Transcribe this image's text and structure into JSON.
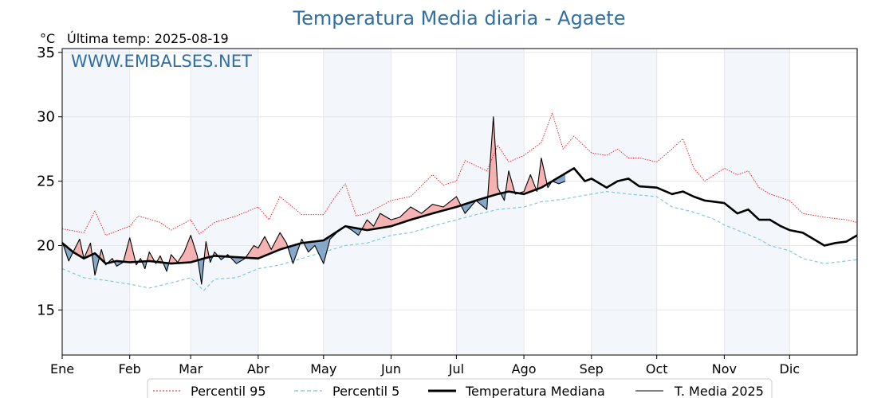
{
  "chart_data": {
    "type": "line",
    "title": "Temperatura Media diaria - Agaete",
    "unit": "°C",
    "subtitle": "Última temp: 2025-08-19",
    "watermark": "WWW.EMBALSES.NET",
    "xlabel": "",
    "ylabel": "",
    "ylim": [
      11.5,
      35.3
    ],
    "yticks": [
      15,
      20,
      25,
      30,
      35
    ],
    "xlim": [
      0,
      365
    ],
    "months": [
      "Ene",
      "Feb",
      "Mar",
      "Abr",
      "May",
      "Jun",
      "Jul",
      "Ago",
      "Sep",
      "Oct",
      "Nov",
      "Dic"
    ],
    "month_start_days": [
      0,
      31,
      59,
      90,
      120,
      151,
      181,
      212,
      243,
      273,
      304,
      334
    ],
    "grid": true,
    "legend_position": "bottom",
    "series": [
      {
        "name": "Percentil 95",
        "color": "#e8141b",
        "style": "dotted",
        "x": [
          0,
          10,
          15,
          20,
          31,
          35,
          45,
          50,
          59,
          63,
          70,
          80,
          90,
          95,
          100,
          110,
          120,
          125,
          130,
          135,
          140,
          151,
          160,
          170,
          175,
          181,
          185,
          195,
          200,
          205,
          212,
          220,
          225,
          230,
          235,
          243,
          250,
          255,
          260,
          265,
          273,
          280,
          285,
          290,
          295,
          304,
          310,
          315,
          320,
          325,
          334,
          340,
          350,
          360,
          365
        ],
        "values": [
          21.3,
          21.0,
          22.7,
          20.8,
          21.5,
          22.3,
          21.8,
          21.2,
          22.0,
          20.9,
          21.8,
          22.3,
          23.0,
          22.0,
          23.8,
          22.4,
          22.4,
          23.7,
          24.8,
          22.3,
          22.5,
          23.5,
          23.8,
          25.5,
          24.7,
          25.0,
          26.6,
          25.8,
          27.8,
          26.5,
          27.0,
          28.0,
          30.3,
          27.5,
          28.5,
          27.2,
          27.0,
          27.5,
          26.8,
          26.8,
          26.5,
          27.5,
          28.3,
          26.0,
          25.0,
          26.0,
          25.5,
          25.8,
          24.5,
          24.0,
          23.5,
          22.5,
          22.2,
          22.0,
          21.8
        ]
      },
      {
        "name": "Percentil 5",
        "color": "#7ec8e3",
        "style": "dashed",
        "x": [
          0,
          10,
          20,
          31,
          40,
          50,
          59,
          65,
          70,
          80,
          90,
          100,
          110,
          120,
          130,
          140,
          151,
          160,
          170,
          181,
          190,
          200,
          212,
          220,
          230,
          243,
          250,
          260,
          273,
          280,
          290,
          300,
          304,
          310,
          320,
          325,
          334,
          340,
          350,
          360,
          365
        ],
        "values": [
          18.2,
          17.5,
          17.3,
          17.0,
          16.7,
          17.1,
          17.5,
          16.5,
          17.4,
          17.5,
          18.2,
          18.5,
          19.0,
          19.5,
          20.0,
          20.2,
          20.8,
          21.0,
          21.5,
          22.0,
          22.4,
          22.8,
          23.0,
          23.4,
          23.6,
          24.0,
          24.2,
          24.0,
          23.8,
          23.0,
          22.6,
          22.0,
          21.6,
          21.2,
          20.5,
          20.0,
          19.6,
          19.0,
          18.6,
          18.8,
          18.9
        ]
      },
      {
        "name": "Temperatura Mediana",
        "color": "#000000",
        "style": "solid-thick",
        "x": [
          0,
          5,
          10,
          15,
          20,
          25,
          31,
          40,
          50,
          59,
          65,
          70,
          80,
          90,
          100,
          110,
          120,
          130,
          140,
          151,
          160,
          170,
          181,
          190,
          200,
          205,
          212,
          220,
          225,
          230,
          235,
          240,
          243,
          250,
          255,
          260,
          265,
          273,
          280,
          285,
          290,
          295,
          304,
          310,
          315,
          320,
          325,
          330,
          334,
          340,
          345,
          350,
          355,
          360,
          365
        ],
        "values": [
          20.2,
          19.5,
          19.0,
          19.4,
          18.6,
          18.8,
          18.7,
          18.8,
          18.6,
          18.7,
          19.0,
          19.2,
          19.1,
          19.0,
          19.7,
          20.2,
          20.4,
          21.5,
          21.2,
          21.5,
          22.0,
          22.5,
          23.0,
          23.5,
          24.0,
          24.2,
          24.0,
          24.5,
          25.0,
          25.5,
          26.0,
          25.0,
          25.2,
          24.5,
          25.0,
          25.2,
          24.6,
          24.5,
          24.0,
          24.2,
          23.8,
          23.5,
          23.3,
          22.5,
          22.8,
          22.0,
          22.0,
          21.5,
          21.2,
          21.0,
          20.5,
          20.0,
          20.2,
          20.3,
          20.8
        ]
      },
      {
        "name": "T. Media 2025",
        "color": "#000000",
        "style": "solid-thin",
        "x": [
          0,
          3,
          5,
          8,
          10,
          13,
          15,
          18,
          20,
          23,
          25,
          28,
          31,
          34,
          36,
          38,
          40,
          43,
          45,
          48,
          50,
          53,
          56,
          59,
          62,
          64,
          66,
          68,
          70,
          73,
          76,
          80,
          84,
          88,
          90,
          93,
          96,
          100,
          103,
          106,
          110,
          113,
          116,
          120,
          123,
          126,
          130,
          133,
          136,
          140,
          143,
          146,
          151,
          155,
          160,
          165,
          170,
          175,
          181,
          185,
          190,
          195,
          198,
          200,
          203,
          205,
          208,
          212,
          215,
          218,
          220,
          223,
          225,
          228,
          231
        ],
        "values": [
          20.3,
          18.8,
          19.5,
          20.5,
          19.0,
          20.2,
          17.7,
          19.7,
          18.5,
          19.0,
          18.4,
          18.7,
          20.6,
          18.5,
          19.0,
          18.2,
          19.5,
          18.6,
          19.2,
          18.0,
          19.3,
          18.7,
          19.5,
          20.8,
          19.2,
          17.0,
          20.3,
          18.7,
          19.5,
          18.9,
          19.3,
          18.6,
          19.0,
          20.0,
          19.8,
          20.7,
          19.7,
          21.0,
          20.2,
          18.6,
          20.5,
          19.5,
          20.0,
          18.6,
          20.5,
          21.0,
          21.5,
          21.2,
          20.8,
          22.0,
          21.5,
          22.5,
          22.0,
          22.2,
          23.0,
          22.5,
          23.2,
          23.0,
          23.8,
          22.5,
          23.5,
          22.8,
          30.0,
          24.5,
          23.5,
          25.8,
          24.0,
          24.2,
          25.5,
          24.2,
          26.8,
          24.5,
          25.0,
          24.8,
          25.0
        ]
      }
    ]
  }
}
